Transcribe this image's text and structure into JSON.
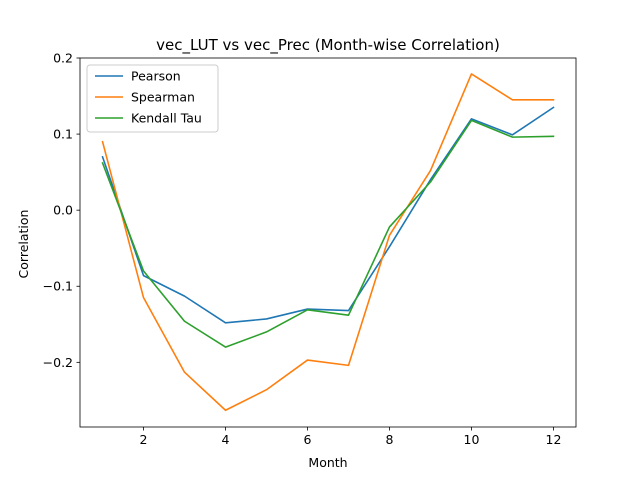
{
  "chart_data": {
    "type": "line",
    "title": "vec_LUT vs vec_Prec (Month-wise Correlation)",
    "xlabel": "Month",
    "ylabel": "Correlation",
    "x": [
      1,
      2,
      3,
      4,
      5,
      6,
      7,
      8,
      9,
      10,
      11,
      12
    ],
    "xlim": [
      0.45,
      12.55
    ],
    "ylim": [
      -0.285,
      0.2
    ],
    "xticks": [
      2,
      4,
      6,
      8,
      10,
      12
    ],
    "xtick_labels": [
      "2",
      "4",
      "6",
      "8",
      "10",
      "12"
    ],
    "yticks": [
      0.2,
      0.1,
      0.0,
      -0.1,
      -0.2
    ],
    "ytick_labels": [
      "0.2",
      "0.1",
      "0.0",
      "−0.1",
      "−0.2"
    ],
    "grid": false,
    "legend_position": "top-left",
    "series": [
      {
        "name": "Pearson",
        "color": "#1f77b4",
        "values": [
          0.07,
          -0.086,
          -0.113,
          -0.148,
          -0.143,
          -0.13,
          -0.132,
          -0.048,
          0.04,
          0.12,
          0.099,
          0.135
        ]
      },
      {
        "name": "Spearman",
        "color": "#ff7f0e",
        "values": [
          0.09,
          -0.115,
          -0.213,
          -0.263,
          -0.236,
          -0.197,
          -0.204,
          -0.033,
          0.052,
          0.179,
          0.145,
          0.145
        ]
      },
      {
        "name": "Kendall Tau",
        "color": "#2ca02c",
        "values": [
          0.062,
          -0.08,
          -0.146,
          -0.18,
          -0.16,
          -0.131,
          -0.138,
          -0.022,
          0.037,
          0.118,
          0.096,
          0.097
        ]
      }
    ]
  }
}
